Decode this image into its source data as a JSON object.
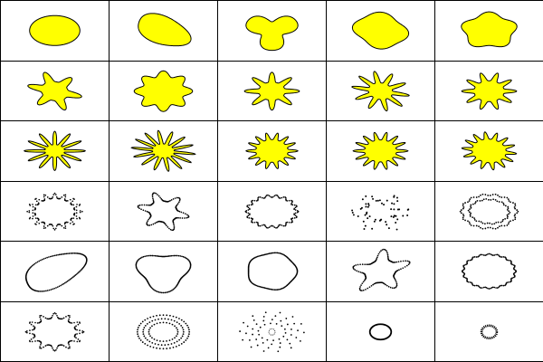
{
  "grid": {
    "columns": 5,
    "rows": 6,
    "colors": {
      "fill": "#ffff00",
      "stroke": "#000000",
      "background": "#ffffff",
      "grid_line": "#000000"
    },
    "cells": [
      {
        "name": "blob-ellipse",
        "style": "filled"
      },
      {
        "name": "blob-tilted-ellipse",
        "style": "filled"
      },
      {
        "name": "blob-three-lobe",
        "style": "filled"
      },
      {
        "name": "blob-rounded-square",
        "style": "filled"
      },
      {
        "name": "blob-rounded-pentagon",
        "style": "filled"
      },
      {
        "name": "star-6-point",
        "style": "filled"
      },
      {
        "name": "star-wavy-8",
        "style": "filled"
      },
      {
        "name": "star-8-point",
        "style": "filled"
      },
      {
        "name": "star-10-point",
        "style": "filled"
      },
      {
        "name": "star-10-point-b",
        "style": "filled"
      },
      {
        "name": "star-12-point-thin",
        "style": "filled"
      },
      {
        "name": "star-14-point-thin",
        "style": "filled"
      },
      {
        "name": "star-14-point-short",
        "style": "filled"
      },
      {
        "name": "star-14-point-b",
        "style": "filled"
      },
      {
        "name": "star-14-point-c",
        "style": "filled"
      },
      {
        "name": "dotted-spiky-ring",
        "style": "dotted"
      },
      {
        "name": "dotted-6-point-star",
        "style": "dotted"
      },
      {
        "name": "dotted-zigzag-ring",
        "style": "dotted"
      },
      {
        "name": "scattered-dot-star",
        "style": "scattered"
      },
      {
        "name": "dotted-double-ring",
        "style": "dotted"
      },
      {
        "name": "dotted-tilted-ellipse",
        "style": "dotted"
      },
      {
        "name": "dotted-triangle-blob",
        "style": "dotted"
      },
      {
        "name": "dotted-round-blob",
        "style": "dotted"
      },
      {
        "name": "dotted-5-point-star",
        "style": "dotted"
      },
      {
        "name": "dotted-wavy-ring",
        "style": "dotted"
      },
      {
        "name": "dotted-spiky-star",
        "style": "dotted"
      },
      {
        "name": "concentric-dot-rings",
        "style": "dotted"
      },
      {
        "name": "radial-dot-burst",
        "style": "scattered"
      },
      {
        "name": "solid-small-ring",
        "style": "ring"
      },
      {
        "name": "beaded-tiny-ring",
        "style": "ring"
      }
    ]
  }
}
